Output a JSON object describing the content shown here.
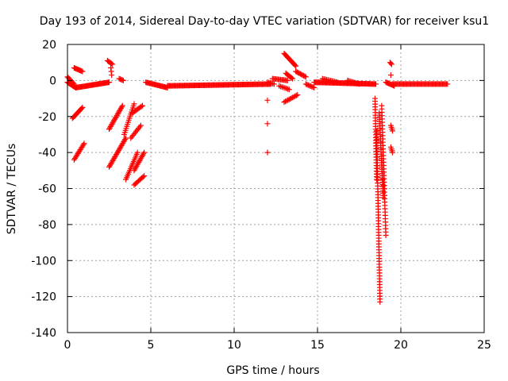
{
  "chart_data": {
    "type": "scatter",
    "title": "Day 193 of 2014, Sidereal Day-to-day VTEC variation (SDTVAR) for receiver ksu1",
    "xlabel": "GPS time / hours",
    "ylabel": "SDTVAR / TECUs",
    "xlim": [
      0,
      25
    ],
    "ylim": [
      -140,
      20
    ],
    "xticks": [
      0,
      5,
      10,
      15,
      20,
      25
    ],
    "yticks": [
      -140,
      -120,
      -100,
      -80,
      -60,
      -40,
      -20,
      0,
      20
    ],
    "grid": true,
    "marker": "+",
    "colors": {
      "series": "#ff0000",
      "grid": "#a0a0a0",
      "axis": "#000000"
    },
    "segments": [
      {
        "x": [
          0.0,
          0.5
        ],
        "y": [
          -1,
          -4
        ],
        "n": 14
      },
      {
        "x": [
          0.0,
          0.4
        ],
        "y": [
          2,
          -2
        ],
        "n": 8
      },
      {
        "x": [
          0.5,
          2.5
        ],
        "y": [
          -4,
          -1
        ],
        "n": 40
      },
      {
        "x": [
          0.4,
          0.9
        ],
        "y": [
          7,
          5
        ],
        "n": 10
      },
      {
        "x": [
          0.3,
          0.9
        ],
        "y": [
          -21,
          -15
        ],
        "n": 12
      },
      {
        "x": [
          0.4,
          1.0
        ],
        "y": [
          -44,
          -35
        ],
        "n": 14
      },
      {
        "x": [
          2.4,
          2.7
        ],
        "y": [
          11,
          9
        ],
        "n": 6
      },
      {
        "x": [
          2.6,
          2.65
        ],
        "y": [
          7,
          3
        ],
        "n": 3
      },
      {
        "x": [
          2.5,
          3.3
        ],
        "y": [
          -27,
          -14
        ],
        "n": 20
      },
      {
        "x": [
          2.5,
          3.5
        ],
        "y": [
          -48,
          -32
        ],
        "n": 24
      },
      {
        "x": [
          3.1,
          3.35
        ],
        "y": [
          1,
          0
        ],
        "n": 5
      },
      {
        "x": [
          3.4,
          4.0
        ],
        "y": [
          -30,
          -13
        ],
        "n": 16
      },
      {
        "x": [
          3.5,
          4.2
        ],
        "y": [
          -55,
          -40
        ],
        "n": 16
      },
      {
        "x": [
          3.9,
          4.5
        ],
        "y": [
          -18,
          -14
        ],
        "n": 10
      },
      {
        "x": [
          3.8,
          4.4
        ],
        "y": [
          -32,
          -25
        ],
        "n": 10
      },
      {
        "x": [
          4.0,
          4.6
        ],
        "y": [
          -50,
          -40
        ],
        "n": 14
      },
      {
        "x": [
          4.0,
          4.6
        ],
        "y": [
          -58,
          -53
        ],
        "n": 10
      },
      {
        "x": [
          4.7,
          6.0
        ],
        "y": [
          -1,
          -4
        ],
        "n": 24
      },
      {
        "x": [
          6.0,
          12.2
        ],
        "y": [
          -3,
          -2
        ],
        "n": 110
      },
      {
        "x": [
          12.0,
          12.4
        ],
        "y": [
          -1,
          -2
        ],
        "n": 6
      },
      {
        "x": [
          12.3,
          13.2
        ],
        "y": [
          1,
          0
        ],
        "n": 14
      },
      {
        "x": [
          12.0,
          12.2
        ],
        "y": [
          -11,
          -11
        ],
        "n": 1
      },
      {
        "x": [
          12.0,
          12.2
        ],
        "y": [
          -24,
          -24
        ],
        "n": 1
      },
      {
        "x": [
          12.0,
          12.2
        ],
        "y": [
          -40,
          -40
        ],
        "n": 1
      },
      {
        "x": [
          13.0,
          13.7
        ],
        "y": [
          15,
          8
        ],
        "n": 14
      },
      {
        "x": [
          13.1,
          13.5
        ],
        "y": [
          4,
          1
        ],
        "n": 8
      },
      {
        "x": [
          12.7,
          13.3
        ],
        "y": [
          -3,
          -5
        ],
        "n": 8
      },
      {
        "x": [
          13.0,
          13.8
        ],
        "y": [
          -12,
          -8
        ],
        "n": 12
      },
      {
        "x": [
          13.7,
          14.3
        ],
        "y": [
          5,
          2
        ],
        "n": 10
      },
      {
        "x": [
          14.3,
          14.8
        ],
        "y": [
          -2,
          -4
        ],
        "n": 8
      },
      {
        "x": [
          14.8,
          18.5
        ],
        "y": [
          -1,
          -2
        ],
        "n": 70
      },
      {
        "x": [
          15.3,
          16.2
        ],
        "y": [
          1,
          -1
        ],
        "n": 12
      },
      {
        "x": [
          16.8,
          17.5
        ],
        "y": [
          0,
          -2
        ],
        "n": 10
      },
      {
        "x": [
          18.45,
          18.55
        ],
        "y": [
          -10,
          -55
        ],
        "n": 30
      },
      {
        "x": [
          18.55,
          18.75
        ],
        "y": [
          -28,
          -123
        ],
        "n": 60
      },
      {
        "x": [
          18.7,
          18.95
        ],
        "y": [
          -18,
          -65
        ],
        "n": 40
      },
      {
        "x": [
          18.85,
          19.1
        ],
        "y": [
          -14,
          -86
        ],
        "n": 40
      },
      {
        "x": [
          18.9,
          19.0
        ],
        "y": [
          -55,
          -60
        ],
        "n": 4
      },
      {
        "x": [
          19.1,
          19.6
        ],
        "y": [
          -1,
          -3
        ],
        "n": 10
      },
      {
        "x": [
          19.35,
          19.45
        ],
        "y": [
          10,
          9
        ],
        "n": 3
      },
      {
        "x": [
          19.4,
          19.45
        ],
        "y": [
          3,
          3
        ],
        "n": 1
      },
      {
        "x": [
          19.4,
          19.5
        ],
        "y": [
          -25,
          -28
        ],
        "n": 4
      },
      {
        "x": [
          19.4,
          19.5
        ],
        "y": [
          -37,
          -40
        ],
        "n": 4
      },
      {
        "x": [
          19.5,
          22.8
        ],
        "y": [
          -2,
          -2
        ],
        "n": 55
      }
    ]
  }
}
